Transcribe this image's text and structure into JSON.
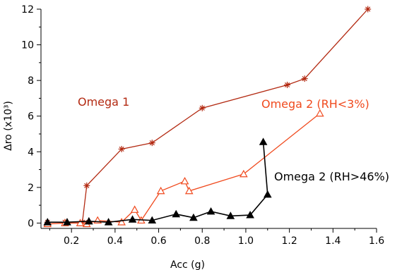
{
  "chart_data": {
    "type": "line",
    "xlabel": "Acc (g)",
    "ylabel": "Δro (x10³)",
    "xlim": [
      0.06,
      1.6
    ],
    "ylim": [
      -0.3,
      12
    ],
    "x_ticks": [
      0.2,
      0.4,
      0.6,
      0.8,
      1.0,
      1.2,
      1.4,
      1.6
    ],
    "x_tick_labels": [
      "0.2",
      "0.4",
      "0.6",
      "0.8",
      "1.0",
      "1.2",
      "1.4",
      "1.6"
    ],
    "y_ticks": [
      0,
      2,
      4,
      6,
      8,
      10,
      12
    ],
    "y_tick_labels": [
      "0",
      "2",
      "4",
      "6",
      "8",
      "10",
      "12"
    ],
    "grid": false,
    "legend": "none",
    "series": [
      {
        "name": "Omega 1",
        "color": "#b32a12",
        "marker": "asterisk",
        "x": [
          0.09,
          0.17,
          0.25,
          0.27,
          0.43,
          0.57,
          0.8,
          1.19,
          1.27,
          1.56
        ],
        "y": [
          0.05,
          0.05,
          0.05,
          2.1,
          4.15,
          4.5,
          6.45,
          7.75,
          8.1,
          12.0
        ]
      },
      {
        "name": "Omega 2 (RH<3%)",
        "color": "#f04a1e",
        "marker": "open-triangle",
        "x": [
          0.09,
          0.17,
          0.24,
          0.27,
          0.32,
          0.43,
          0.49,
          0.52,
          0.61,
          0.72,
          0.74,
          0.99,
          1.34
        ],
        "y": [
          -0.05,
          0.0,
          0.0,
          -0.05,
          0.15,
          0.05,
          0.75,
          0.15,
          1.8,
          2.35,
          1.8,
          2.75,
          6.15
        ]
      },
      {
        "name": "Omega 2 (RH>46%)",
        "color": "#000000",
        "marker": "filled-triangle",
        "x": [
          0.09,
          0.18,
          0.28,
          0.37,
          0.48,
          0.57,
          0.68,
          0.76,
          0.84,
          0.93,
          1.02,
          1.1,
          1.08
        ],
        "y": [
          0.05,
          0.05,
          0.1,
          0.05,
          0.2,
          0.15,
          0.5,
          0.3,
          0.65,
          0.4,
          0.45,
          1.6,
          4.55
        ]
      }
    ]
  }
}
